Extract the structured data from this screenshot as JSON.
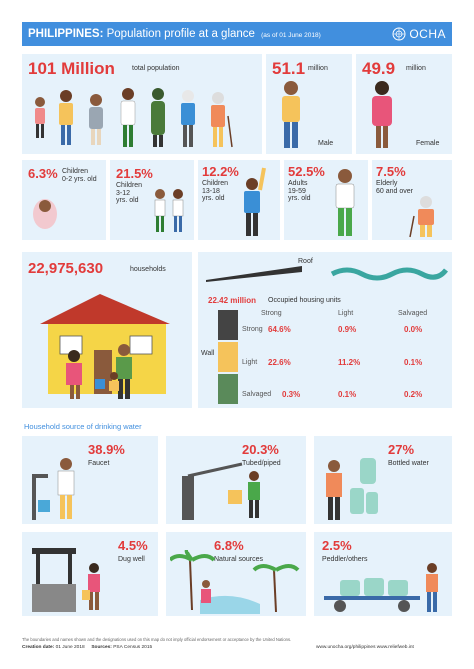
{
  "header": {
    "title_bold": "PHILIPPINES:",
    "title_rest": "Population profile at a glance",
    "subtitle": "(as of 01 June 2018)",
    "logo": "OCHA",
    "logo_icon": "un-emblem-icon"
  },
  "population": {
    "total_value": "101 Million",
    "total_label": "total population",
    "male_value": "51.1",
    "male_unit": "million",
    "male_label": "Male",
    "female_value": "49.9",
    "female_unit": "million",
    "female_label": "Female"
  },
  "age_groups": [
    {
      "pct": "6.3%",
      "label": "Children\n0-2 yrs. old"
    },
    {
      "pct": "21.5%",
      "label": "Children\n3-12\nyrs. old"
    },
    {
      "pct": "12.2%",
      "label": "Children\n13-18\nyrs. old"
    },
    {
      "pct": "52.5%",
      "label": "Adults\n19-59\nyrs. old"
    },
    {
      "pct": "7.5%",
      "label": "Elderly\n60 and over"
    }
  ],
  "households": {
    "value": "22,975,630",
    "label": "households",
    "roof_label": "Roof",
    "occupied_value": "22.42 million",
    "occupied_label": "Occupied housing units",
    "wall_label": "Wall",
    "columns": [
      "Strong",
      "Light",
      "Salvaged"
    ],
    "rows": [
      {
        "name": "Strong",
        "values": [
          "64.6%",
          "0.9%",
          "0.0%"
        ]
      },
      {
        "name": "Light",
        "values": [
          "22.6%",
          "11.2%",
          "0.1%"
        ]
      },
      {
        "name": "Salvaged",
        "values": [
          "0.3%",
          "0.1%",
          "0.2%"
        ]
      }
    ]
  },
  "water": {
    "section_title": "Household source of drinking water",
    "sources": [
      {
        "pct": "38.9%",
        "label": "Faucet"
      },
      {
        "pct": "20.3%",
        "label": "Tubed/piped"
      },
      {
        "pct": "27%",
        "label": "Bottled water"
      },
      {
        "pct": "4.5%",
        "label": "Dug well"
      },
      {
        "pct": "6.8%",
        "label": "Natural sources"
      },
      {
        "pct": "2.5%",
        "label": "Peddler/others"
      }
    ]
  },
  "footer": {
    "disclaimer": "The boundaries and names shown and the designations used on this map do not imply official endorsement or acceptance by the United Nations.",
    "creation_label": "Creation date:",
    "creation_value": "01 June 2018",
    "sources_label": "Sources:",
    "sources_value": "PSA Census 2015",
    "urls": "www.unocha.org/philippines  www.reliefweb.int"
  },
  "colors": {
    "accent_blue": "#418fde",
    "highlight_red": "#e23b3b",
    "card_bg": "#e6f2fb"
  }
}
